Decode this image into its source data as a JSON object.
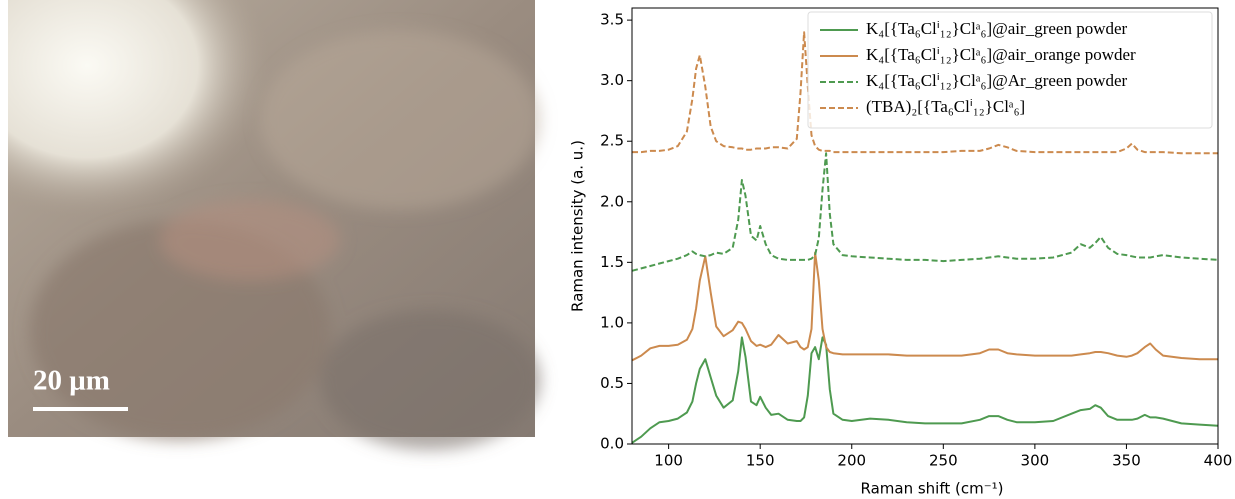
{
  "micrograph": {
    "scale_bar_label": "20 μm"
  },
  "chart_data": {
    "type": "line",
    "xlabel": "Raman shift (cm⁻¹)",
    "ylabel": "Raman intensity (a. u.)",
    "x": [
      80,
      85,
      90,
      95,
      100,
      105,
      110,
      113,
      115,
      117,
      120,
      123,
      126,
      130,
      135,
      138,
      140,
      142,
      145,
      148,
      150,
      153,
      156,
      160,
      165,
      170,
      172,
      174,
      176,
      178,
      180,
      182,
      184,
      186,
      188,
      190,
      195,
      200,
      210,
      220,
      230,
      240,
      250,
      260,
      270,
      275,
      280,
      285,
      290,
      300,
      310,
      320,
      325,
      330,
      333,
      336,
      340,
      345,
      350,
      353,
      356,
      360,
      363,
      366,
      370,
      380,
      390,
      400
    ],
    "series": [
      {
        "name": "K₄[{Ta₆Clⁱ₁₂}Clᵃ₆]@air_green powder",
        "color": "#4e9a50",
        "dashed": false,
        "values": [
          0.01,
          0.06,
          0.13,
          0.18,
          0.19,
          0.21,
          0.26,
          0.35,
          0.5,
          0.62,
          0.7,
          0.55,
          0.4,
          0.3,
          0.36,
          0.6,
          0.88,
          0.72,
          0.35,
          0.32,
          0.39,
          0.3,
          0.24,
          0.25,
          0.2,
          0.19,
          0.19,
          0.22,
          0.4,
          0.75,
          0.8,
          0.7,
          0.88,
          0.82,
          0.45,
          0.25,
          0.2,
          0.19,
          0.21,
          0.2,
          0.18,
          0.17,
          0.17,
          0.17,
          0.2,
          0.23,
          0.23,
          0.2,
          0.18,
          0.18,
          0.19,
          0.25,
          0.28,
          0.29,
          0.32,
          0.3,
          0.23,
          0.2,
          0.2,
          0.2,
          0.21,
          0.24,
          0.22,
          0.22,
          0.21,
          0.17,
          0.16,
          0.15
        ]
      },
      {
        "name": "K₄[{Ta₆Clⁱ₁₂}Clᵃ₆]@air_orange powder",
        "color": "#cc8a4e",
        "dashed": false,
        "values": [
          0.69,
          0.73,
          0.79,
          0.81,
          0.81,
          0.82,
          0.86,
          0.95,
          1.12,
          1.35,
          1.55,
          1.25,
          0.97,
          0.89,
          0.94,
          1.01,
          1.0,
          0.95,
          0.85,
          0.81,
          0.82,
          0.8,
          0.82,
          0.9,
          0.83,
          0.85,
          0.8,
          0.78,
          0.8,
          0.95,
          1.58,
          1.35,
          0.95,
          0.8,
          0.76,
          0.75,
          0.74,
          0.74,
          0.74,
          0.74,
          0.73,
          0.73,
          0.73,
          0.73,
          0.75,
          0.78,
          0.78,
          0.75,
          0.74,
          0.73,
          0.73,
          0.73,
          0.74,
          0.75,
          0.76,
          0.76,
          0.75,
          0.73,
          0.72,
          0.73,
          0.75,
          0.8,
          0.83,
          0.78,
          0.73,
          0.71,
          0.7,
          0.7
        ]
      },
      {
        "name": "K₄[{Ta₆Clⁱ₁₂}Clᵃ₆]@Ar_green powder",
        "color": "#4e9a50",
        "dashed": true,
        "values": [
          1.43,
          1.45,
          1.47,
          1.49,
          1.51,
          1.53,
          1.56,
          1.59,
          1.57,
          1.56,
          1.55,
          1.56,
          1.58,
          1.57,
          1.62,
          1.85,
          2.18,
          2.05,
          1.72,
          1.68,
          1.8,
          1.65,
          1.56,
          1.53,
          1.52,
          1.52,
          1.52,
          1.52,
          1.52,
          1.53,
          1.56,
          1.7,
          2.1,
          2.4,
          1.9,
          1.65,
          1.56,
          1.55,
          1.54,
          1.53,
          1.52,
          1.52,
          1.51,
          1.52,
          1.53,
          1.54,
          1.55,
          1.54,
          1.53,
          1.53,
          1.54,
          1.58,
          1.65,
          1.62,
          1.66,
          1.71,
          1.62,
          1.57,
          1.56,
          1.55,
          1.54,
          1.54,
          1.54,
          1.55,
          1.56,
          1.54,
          1.53,
          1.52
        ]
      },
      {
        "name": "(TBA)₂[{Ta₆Clⁱ₁₂}Clᵃ₆]",
        "color": "#cc8a4e",
        "dashed": true,
        "values": [
          2.41,
          2.41,
          2.42,
          2.42,
          2.43,
          2.46,
          2.58,
          2.85,
          3.1,
          3.21,
          2.95,
          2.62,
          2.5,
          2.46,
          2.45,
          2.44,
          2.44,
          2.43,
          2.43,
          2.44,
          2.44,
          2.44,
          2.45,
          2.45,
          2.44,
          2.52,
          2.9,
          3.4,
          2.95,
          2.55,
          2.46,
          2.43,
          2.42,
          2.42,
          2.42,
          2.41,
          2.41,
          2.41,
          2.41,
          2.41,
          2.41,
          2.41,
          2.41,
          2.42,
          2.42,
          2.44,
          2.47,
          2.45,
          2.42,
          2.41,
          2.41,
          2.41,
          2.41,
          2.41,
          2.41,
          2.41,
          2.41,
          2.41,
          2.44,
          2.48,
          2.43,
          2.41,
          2.41,
          2.41,
          2.41,
          2.4,
          2.4,
          2.4
        ]
      }
    ],
    "xlim": [
      80,
      400
    ],
    "xticks": [
      100,
      150,
      200,
      250,
      300,
      350,
      400
    ],
    "ylim": [
      0,
      3.6
    ],
    "yticks": [
      {
        "value": 0,
        "label": "0.0"
      },
      0.5,
      {
        "value": 1,
        "label": "1.0"
      },
      1.5,
      {
        "value": 2,
        "label": "2.0"
      },
      2.5,
      {
        "value": 3,
        "label": "3.0"
      },
      3.5
    ],
    "legend": "upper right"
  }
}
